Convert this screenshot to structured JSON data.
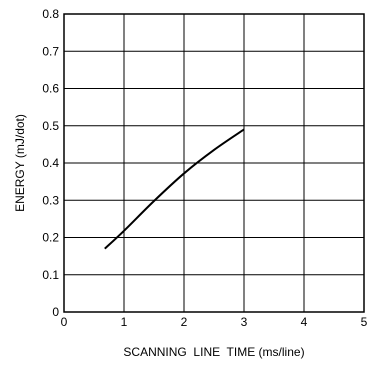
{
  "chart_data": {
    "type": "line",
    "title": "",
    "xlabel": "SCANNING  LINE  TIME (ms/line)",
    "ylabel": "ENERGY (mJ/dot)",
    "xlim": [
      0,
      5
    ],
    "ylim": [
      0,
      0.8
    ],
    "xticks": [
      "0",
      "1",
      "2",
      "3",
      "4",
      "5"
    ],
    "yticks": [
      "0",
      "0.1",
      "0.2",
      "0.3",
      "0.4",
      "0.5",
      "0.6",
      "0.7",
      "0.8"
    ],
    "grid": true,
    "legend": "none",
    "line_color": "#000000",
    "series": [
      {
        "x": [
          0.68,
          1.0,
          1.5,
          2.0,
          2.5,
          3.0
        ],
        "y": [
          0.17,
          0.218,
          0.298,
          0.372,
          0.435,
          0.49
        ]
      }
    ]
  }
}
